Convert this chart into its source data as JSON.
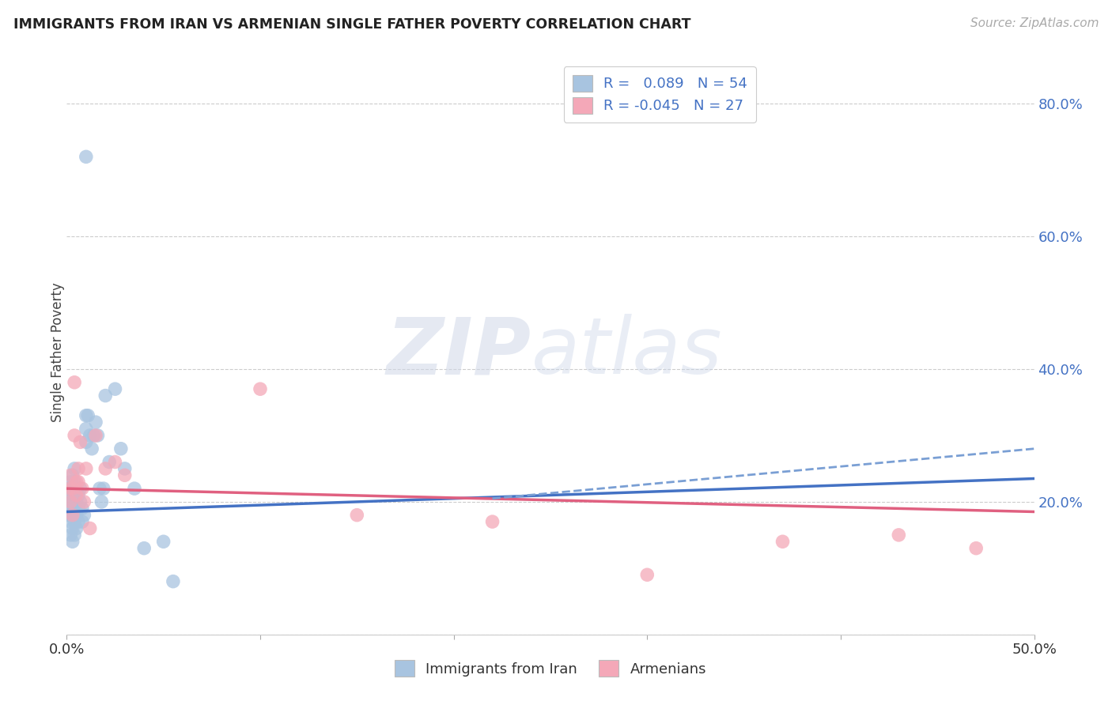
{
  "title": "IMMIGRANTS FROM IRAN VS ARMENIAN SINGLE FATHER POVERTY CORRELATION CHART",
  "source": "Source: ZipAtlas.com",
  "ylabel": "Single Father Poverty",
  "legend_label1": "Immigrants from Iran",
  "legend_label2": "Armenians",
  "r1": 0.089,
  "n1": 54,
  "r2": -0.045,
  "n2": 27,
  "xlim": [
    0.0,
    0.5
  ],
  "ylim": [
    0.0,
    0.85
  ],
  "color_iran": "#a8c4e0",
  "color_armenian": "#f4a8b8",
  "line_color_iran": "#4472c4",
  "line_color_armenian": "#e06080",
  "dashed_color": "#7a9fd4",
  "background_color": "#ffffff",
  "iran_x": [
    0.001,
    0.001,
    0.001,
    0.002,
    0.002,
    0.002,
    0.002,
    0.002,
    0.003,
    0.003,
    0.003,
    0.003,
    0.003,
    0.003,
    0.004,
    0.004,
    0.004,
    0.004,
    0.004,
    0.004,
    0.005,
    0.005,
    0.005,
    0.005,
    0.006,
    0.006,
    0.006,
    0.007,
    0.007,
    0.008,
    0.008,
    0.009,
    0.01,
    0.01,
    0.01,
    0.011,
    0.012,
    0.013,
    0.014,
    0.015,
    0.016,
    0.017,
    0.018,
    0.019,
    0.02,
    0.022,
    0.025,
    0.028,
    0.03,
    0.035,
    0.04,
    0.05,
    0.055,
    0.01
  ],
  "iran_y": [
    0.22,
    0.2,
    0.18,
    0.23,
    0.21,
    0.19,
    0.17,
    0.15,
    0.24,
    0.22,
    0.2,
    0.18,
    0.16,
    0.14,
    0.25,
    0.23,
    0.21,
    0.19,
    0.17,
    0.15,
    0.22,
    0.2,
    0.18,
    0.16,
    0.21,
    0.19,
    0.17,
    0.22,
    0.2,
    0.19,
    0.17,
    0.18,
    0.33,
    0.31,
    0.29,
    0.33,
    0.3,
    0.28,
    0.3,
    0.32,
    0.3,
    0.22,
    0.2,
    0.22,
    0.36,
    0.26,
    0.37,
    0.28,
    0.25,
    0.22,
    0.13,
    0.14,
    0.08,
    0.72
  ],
  "armenian_x": [
    0.001,
    0.002,
    0.002,
    0.003,
    0.003,
    0.004,
    0.004,
    0.005,
    0.005,
    0.006,
    0.006,
    0.007,
    0.008,
    0.009,
    0.01,
    0.012,
    0.015,
    0.02,
    0.025,
    0.03,
    0.1,
    0.15,
    0.22,
    0.3,
    0.37,
    0.43,
    0.47
  ],
  "armenian_y": [
    0.22,
    0.24,
    0.2,
    0.22,
    0.18,
    0.38,
    0.3,
    0.23,
    0.21,
    0.25,
    0.23,
    0.29,
    0.22,
    0.2,
    0.25,
    0.16,
    0.3,
    0.25,
    0.26,
    0.24,
    0.37,
    0.18,
    0.17,
    0.09,
    0.14,
    0.15,
    0.13
  ],
  "iran_line_x": [
    0.0,
    0.5
  ],
  "iran_line_y": [
    0.185,
    0.235
  ],
  "armenian_line_x": [
    0.0,
    0.5
  ],
  "armenian_line_y": [
    0.22,
    0.185
  ],
  "dashed_line_x": [
    0.22,
    0.5
  ],
  "dashed_line_y": [
    0.205,
    0.28
  ]
}
